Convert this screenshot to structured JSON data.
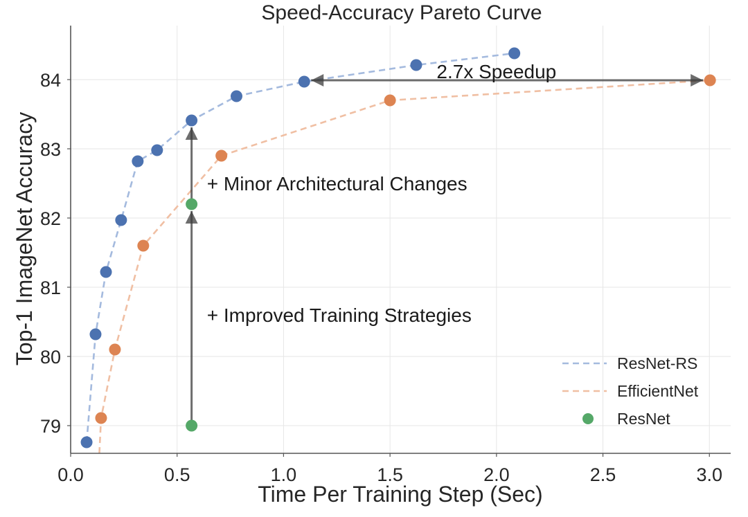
{
  "chart_data": {
    "type": "scatter",
    "title": "Speed-Accuracy Pareto Curve",
    "xlabel": "Time Per Training Step (Sec)",
    "ylabel": "Top-1 ImageNet Accuracy",
    "xlim": [
      0.0,
      3.1
    ],
    "ylim": [
      78.6,
      84.78
    ],
    "xticks": [
      0.0,
      0.5,
      1.0,
      1.5,
      2.0,
      2.5,
      3.0
    ],
    "xtick_labels": [
      "0.0",
      "0.5",
      "1.0",
      "1.5",
      "2.0",
      "2.5",
      "3.0"
    ],
    "yticks": [
      79,
      80,
      81,
      82,
      83,
      84
    ],
    "ytick_labels": [
      "79",
      "80",
      "81",
      "82",
      "83",
      "84"
    ],
    "grid": true,
    "legend_position": "bottom-right",
    "series": [
      {
        "name": "ResNet-RS",
        "style": "dashed-line-with-markers",
        "color": "#4c72b0",
        "line_color": "#a4bade",
        "x": [
          0.075,
          0.117,
          0.166,
          0.237,
          0.315,
          0.406,
          0.568,
          0.779,
          1.097,
          1.623,
          2.084
        ],
        "y": [
          78.76,
          80.32,
          81.22,
          81.97,
          82.82,
          82.98,
          83.41,
          83.76,
          83.97,
          84.21,
          84.38
        ]
      },
      {
        "name": "EfficientNet",
        "style": "dashed-line-with-markers",
        "color": "#dd8452",
        "line_color": "#f0bfa3",
        "x": [
          0.13,
          0.143,
          0.208,
          0.341,
          0.708,
          1.5,
          3.003
        ],
        "y": [
          78.3,
          79.11,
          80.1,
          81.6,
          82.9,
          83.7,
          83.99
        ],
        "hidden_first_marker": true
      },
      {
        "name": "ResNet",
        "style": "markers",
        "color": "#55a868",
        "x": [
          0.568,
          0.568
        ],
        "y": [
          79.0,
          82.2
        ]
      }
    ],
    "annotations": [
      {
        "text": "2.7x Speedup",
        "type": "double-arrow",
        "from": [
          1.097,
          83.99
        ],
        "to": [
          3.003,
          83.99
        ],
        "text_at": [
          2.0,
          84.12
        ]
      },
      {
        "text": "+ Minor Architectural Changes",
        "type": "arrow",
        "from": [
          0.568,
          82.2
        ],
        "to": [
          0.568,
          83.41
        ],
        "text_at": [
          0.64,
          82.5
        ]
      },
      {
        "text": "+ Improved Training Strategies",
        "type": "arrow",
        "from": [
          0.568,
          79.0
        ],
        "to": [
          0.568,
          82.2
        ],
        "text_at": [
          0.64,
          80.6
        ]
      }
    ]
  }
}
